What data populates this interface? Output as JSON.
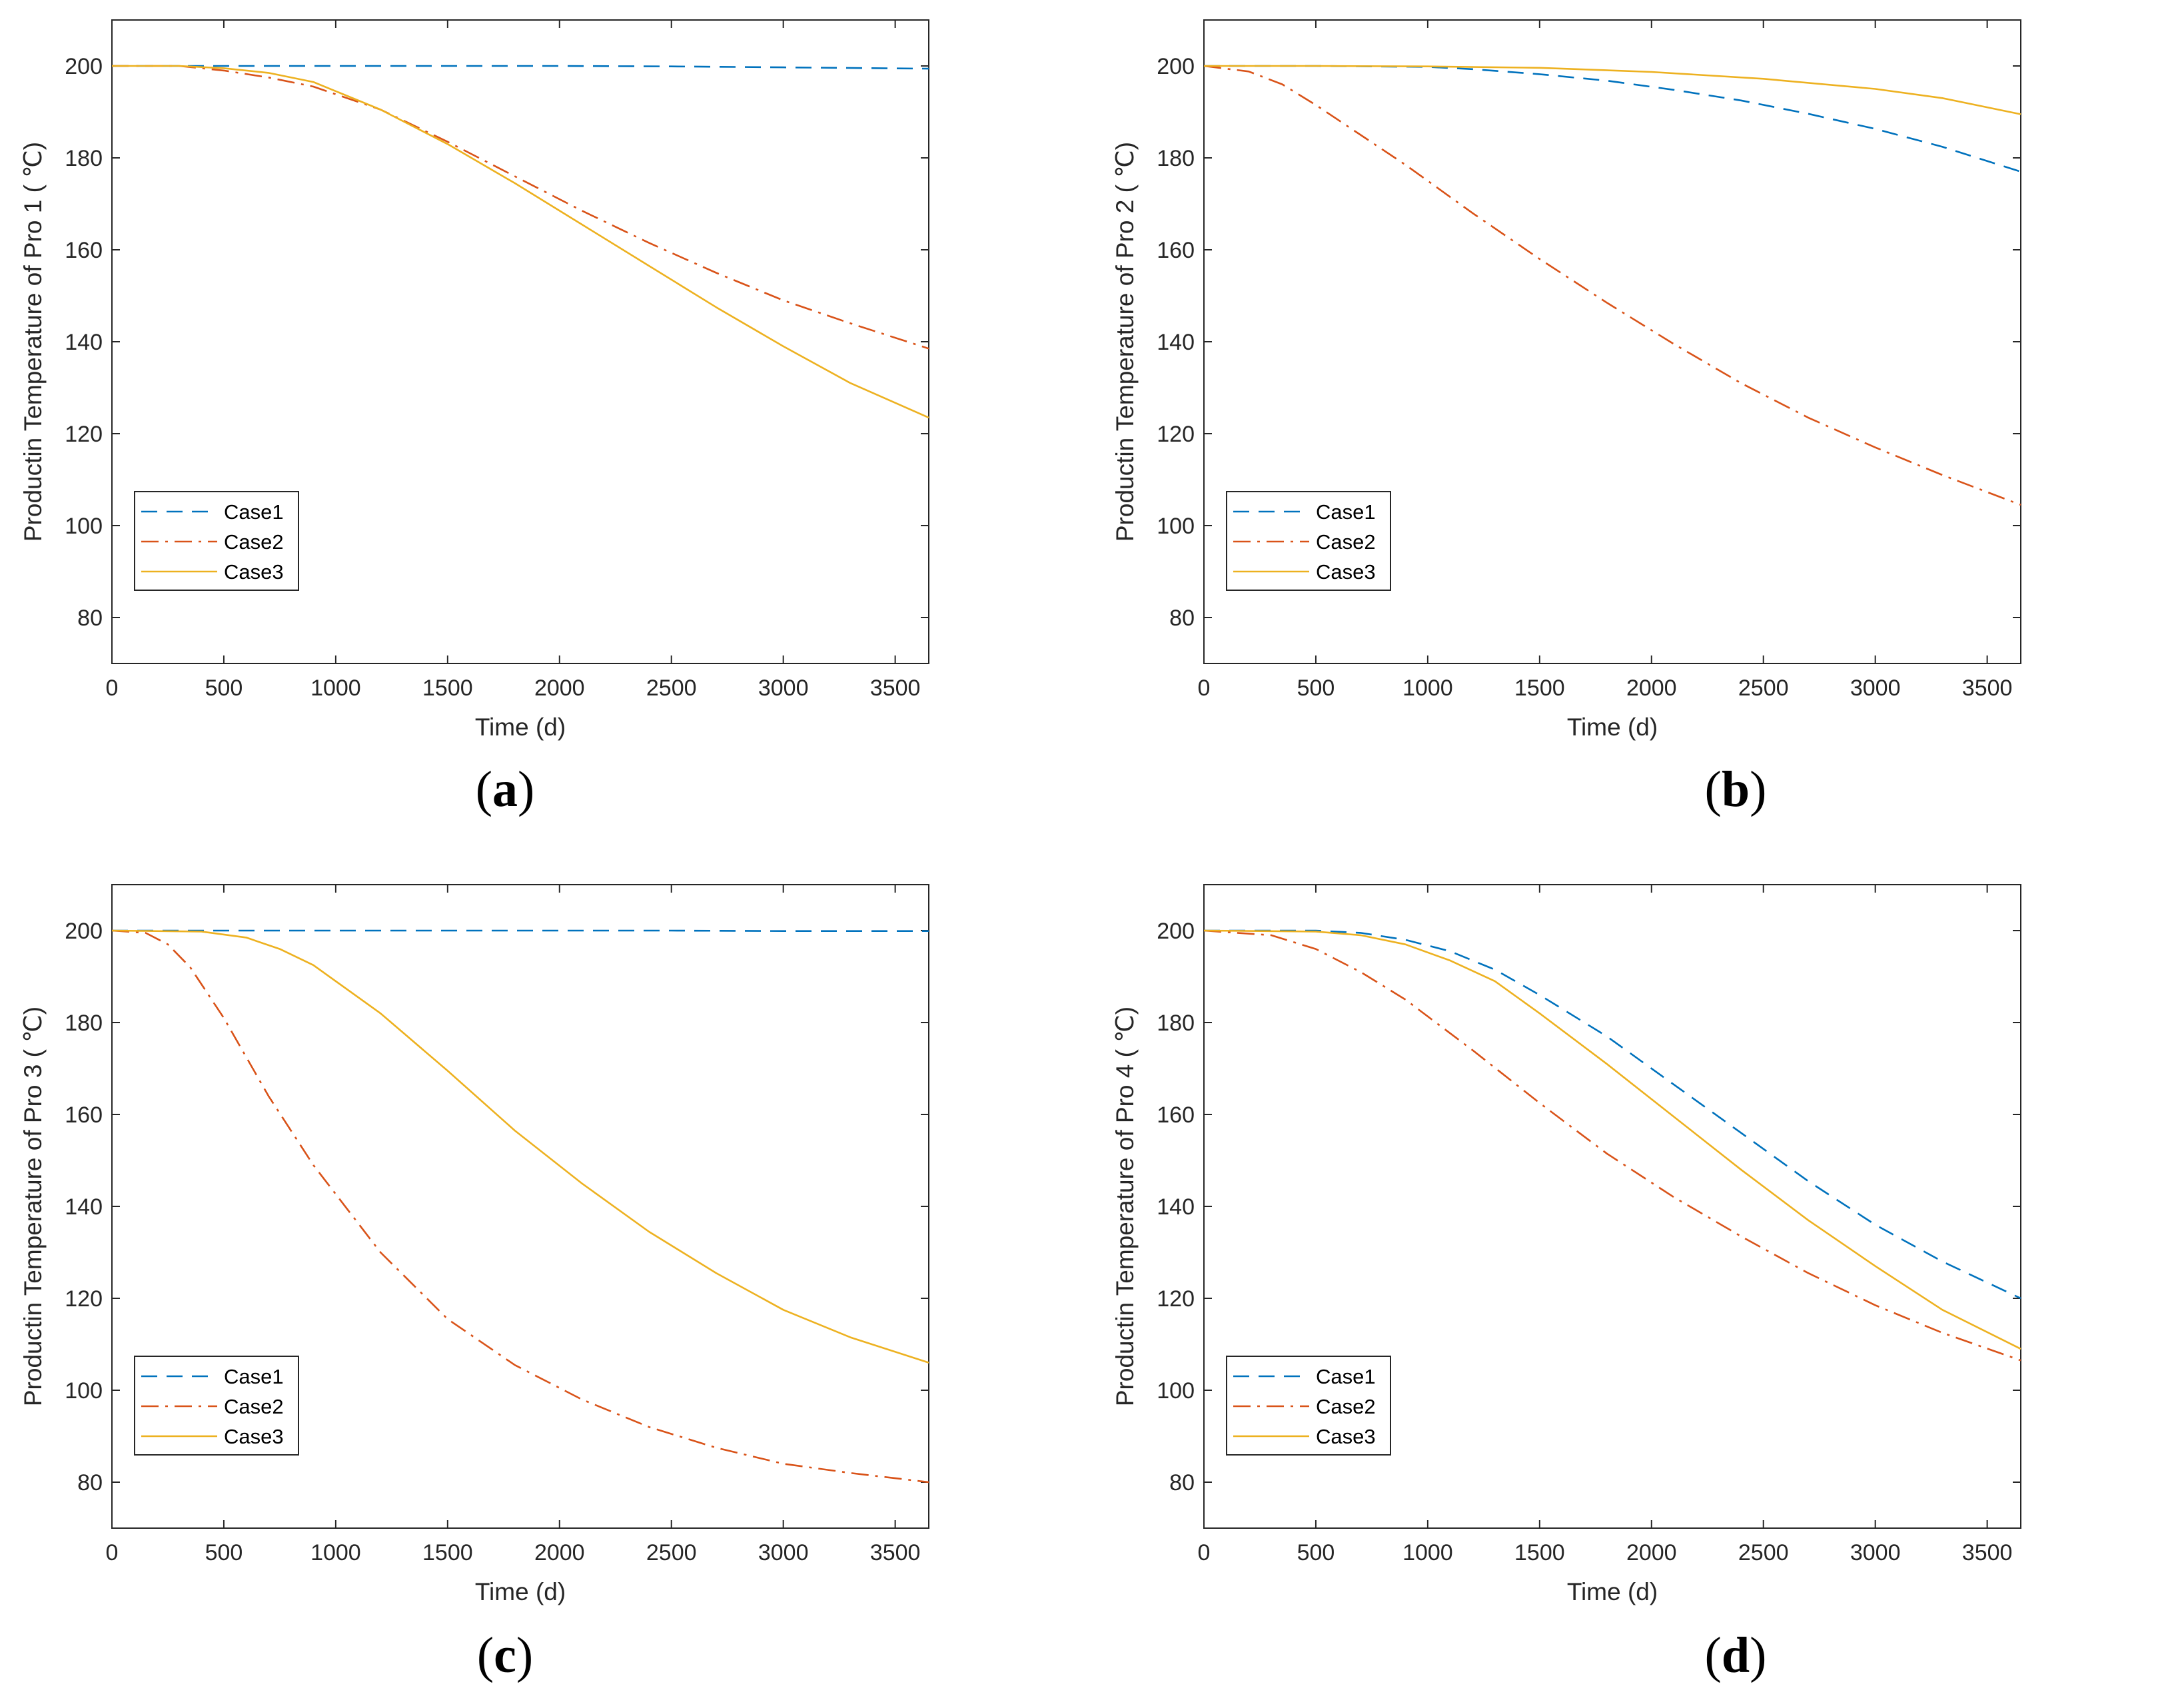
{
  "figure": {
    "legend_entries": [
      "Case1",
      "Case2",
      "Case3"
    ]
  },
  "colors": {
    "case1": "#0072BD",
    "case2": "#D95319",
    "case3": "#EDB120",
    "axis": "#262626"
  },
  "chart_data": [
    {
      "type": "line",
      "panel_label": "a",
      "xlabel": "Time (d)",
      "ylabel": "Productin Temperature of Pro 1 ( ℃)",
      "xlim": [
        0,
        3650
      ],
      "ylim": [
        70,
        210
      ],
      "xticks": [
        0,
        500,
        1000,
        1500,
        2000,
        2500,
        3000,
        3500
      ],
      "yticks": [
        80,
        100,
        120,
        140,
        160,
        180,
        200
      ],
      "series": [
        {
          "name": "Case1",
          "x": [
            0,
            500,
            1000,
            1500,
            2000,
            2500,
            3000,
            3650
          ],
          "values": [
            200,
            200,
            200,
            200,
            200,
            199.9,
            199.7,
            199.4
          ]
        },
        {
          "name": "Case2",
          "x": [
            0,
            300,
            500,
            700,
            900,
            1200,
            1500,
            1800,
            2100,
            2400,
            2700,
            3000,
            3300,
            3650
          ],
          "values": [
            200,
            200,
            199,
            197.5,
            195.5,
            190.5,
            183.5,
            176,
            168.5,
            161.5,
            155,
            149,
            144,
            138.5
          ]
        },
        {
          "name": "Case3",
          "x": [
            0,
            300,
            500,
            700,
            900,
            1200,
            1500,
            1800,
            2100,
            2400,
            2700,
            3000,
            3300,
            3650
          ],
          "values": [
            200,
            200,
            199.5,
            198.5,
            196.5,
            190.5,
            183,
            174.5,
            165.5,
            156.5,
            147.5,
            139,
            131,
            123.5
          ]
        }
      ]
    },
    {
      "type": "line",
      "panel_label": "b",
      "xlabel": "Time (d)",
      "ylabel": "Productin Temperature of Pro 2 ( ℃)",
      "xlim": [
        0,
        3650
      ],
      "ylim": [
        70,
        210
      ],
      "xticks": [
        0,
        500,
        1000,
        1500,
        2000,
        2500,
        3000,
        3500
      ],
      "yticks": [
        80,
        100,
        120,
        140,
        160,
        180,
        200
      ],
      "series": [
        {
          "name": "Case1",
          "x": [
            0,
            500,
            1000,
            1200,
            1500,
            1800,
            2100,
            2400,
            2700,
            3000,
            3300,
            3650
          ],
          "values": [
            200,
            200,
            199.8,
            199.3,
            198.2,
            196.8,
            194.8,
            192.5,
            189.6,
            186.3,
            182.4,
            177
          ]
        },
        {
          "name": "Case2",
          "x": [
            0,
            200,
            350,
            500,
            700,
            900,
            1200,
            1500,
            1800,
            2100,
            2400,
            2700,
            3000,
            3300,
            3650
          ],
          "values": [
            200,
            198.8,
            196,
            191.5,
            185,
            178.5,
            168,
            158,
            148.5,
            139.5,
            131,
            123.5,
            117,
            111,
            104.5
          ]
        },
        {
          "name": "Case3",
          "x": [
            0,
            500,
            1000,
            1500,
            2000,
            2500,
            3000,
            3300,
            3650
          ],
          "values": [
            200,
            200,
            199.9,
            199.6,
            198.7,
            197.2,
            195,
            193,
            189.5
          ]
        }
      ]
    },
    {
      "type": "line",
      "panel_label": "c",
      "xlabel": "Time (d)",
      "ylabel": "Productin Temperature of Pro 3 ( ℃)",
      "xlim": [
        0,
        3650
      ],
      "ylim": [
        70,
        210
      ],
      "xticks": [
        0,
        500,
        1000,
        1500,
        2000,
        2500,
        3000,
        3500
      ],
      "yticks": [
        80,
        100,
        120,
        140,
        160,
        180,
        200
      ],
      "series": [
        {
          "name": "Case1",
          "x": [
            0,
            500,
            1000,
            1500,
            2000,
            2500,
            3000,
            3650
          ],
          "values": [
            200,
            200,
            200,
            200,
            200,
            200,
            199.9,
            199.9
          ]
        },
        {
          "name": "Case2",
          "x": [
            0,
            150,
            250,
            350,
            500,
            700,
            900,
            1200,
            1500,
            1800,
            2100,
            2400,
            2700,
            3000,
            3300,
            3650
          ],
          "values": [
            200,
            199.5,
            197,
            192,
            181,
            164,
            149,
            130,
            115.5,
            105.5,
            98,
            92,
            87.5,
            84,
            82,
            80
          ]
        },
        {
          "name": "Case3",
          "x": [
            0,
            400,
            600,
            750,
            900,
            1200,
            1500,
            1800,
            2100,
            2400,
            2700,
            3000,
            3300,
            3650
          ],
          "values": [
            200,
            199.8,
            198.5,
            196,
            192.5,
            182,
            169.5,
            156.5,
            145,
            134.5,
            125.5,
            117.5,
            111.5,
            106
          ]
        }
      ]
    },
    {
      "type": "line",
      "panel_label": "d",
      "xlabel": "Time (d)",
      "ylabel": "Productin Temperature of Pro 4 ( ℃)",
      "xlim": [
        0,
        3650
      ],
      "ylim": [
        70,
        210
      ],
      "xticks": [
        0,
        500,
        1000,
        1500,
        2000,
        2500,
        3000,
        3500
      ],
      "yticks": [
        80,
        100,
        120,
        140,
        160,
        180,
        200
      ],
      "series": [
        {
          "name": "Case1",
          "x": [
            0,
            500,
            700,
            900,
            1100,
            1300,
            1500,
            1800,
            2100,
            2400,
            2700,
            3000,
            3300,
            3650
          ],
          "values": [
            200,
            200,
            199.5,
            198,
            195.5,
            191.5,
            186,
            177,
            166.5,
            156,
            145.5,
            136,
            128,
            120
          ]
        },
        {
          "name": "Case2",
          "x": [
            0,
            300,
            500,
            700,
            900,
            1200,
            1500,
            1800,
            2100,
            2400,
            2700,
            3000,
            3300,
            3650
          ],
          "values": [
            200,
            199,
            196,
            191,
            185,
            174,
            162.5,
            151.5,
            142,
            133.5,
            125.5,
            118.5,
            112.5,
            106.5
          ]
        },
        {
          "name": "Case3",
          "x": [
            0,
            500,
            700,
            900,
            1100,
            1300,
            1500,
            1800,
            2100,
            2400,
            2700,
            3000,
            3300,
            3650
          ],
          "values": [
            200,
            199.8,
            199,
            197,
            193.5,
            189,
            182,
            171,
            159.5,
            148,
            137,
            127,
            117.5,
            109
          ]
        }
      ]
    }
  ]
}
